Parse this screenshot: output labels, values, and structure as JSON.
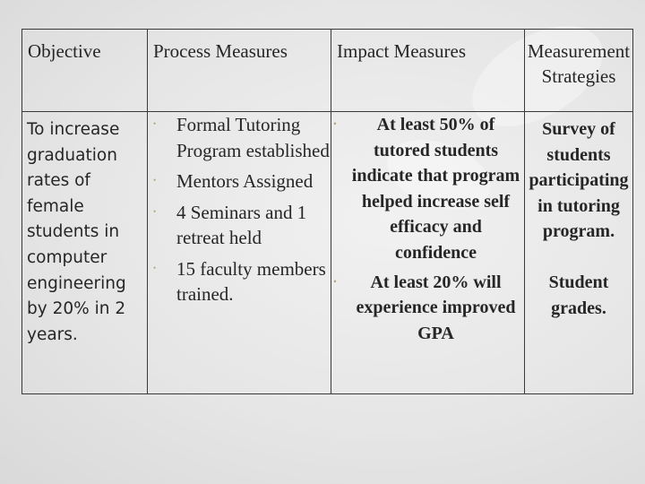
{
  "table": {
    "headers": {
      "objective": "Objective",
      "process": "Process Measures",
      "impact": "Impact Measures",
      "strategies": "Measurement Strategies"
    },
    "objective_text": "To increase graduation rates of female students in computer engineering by 20% in 2 years.",
    "process_items": [
      "Formal Tutoring Program established",
      "Mentors Assigned",
      "4 Seminars and 1 retreat held",
      "15 faculty members trained."
    ],
    "impact_items": [
      "At least 50% of tutored students indicate that program helped increase self efficacy and confidence",
      "At least 20% will experience improved GPA"
    ],
    "strategies": [
      "Survey of students participating in tutoring program.",
      "Student grades."
    ]
  },
  "colors": {
    "background": "#e9e9e9",
    "border": "#3a3a3a",
    "bullet": "#b8a27a",
    "text": "#262626"
  }
}
